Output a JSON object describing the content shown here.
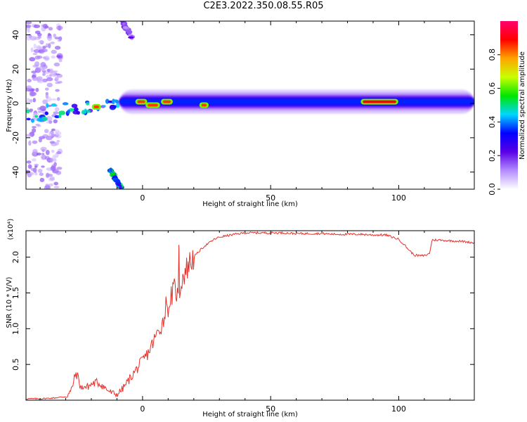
{
  "title": "C2E3.2022.350.08.55.R05",
  "chart_data": [
    {
      "type": "heatmap",
      "xlabel": "Height of straight line (km)",
      "ylabel": "Frequency (Hz)",
      "xlim": [
        -45.5,
        129.5
      ],
      "ylim": [
        -50,
        48
      ],
      "xticks": [
        0,
        50,
        100
      ],
      "yticks": [
        -40,
        -20,
        0,
        20,
        40
      ],
      "colorbar": {
        "label": "Normalized spectral amplitude",
        "range": [
          0.0,
          1.0
        ],
        "ticks": [
          0.0,
          0.2,
          0.4,
          0.6,
          0.8
        ],
        "colormap": [
          "#ffffff",
          "#b48cff",
          "#5a00e6",
          "#0000ff",
          "#00d7ff",
          "#00e600",
          "#c8ff00",
          "#ffa500",
          "#ff0000",
          "#ff006e"
        ]
      },
      "main_band": {
        "x_range": [
          -9,
          129.5
        ],
        "frequency": 1,
        "typical_amplitude": 0.35,
        "peak_amplitude": 0.9
      },
      "features": [
        {
          "x_range": [
            -45,
            -32
          ],
          "frequency_range": [
            -50,
            48
          ],
          "typical_amplitude": 0.1,
          "kind": "noise"
        },
        {
          "x_range": [
            -45,
            -9
          ],
          "frequency_range": [
            -12,
            3
          ],
          "typical_amplitude": 0.3,
          "kind": "rising-echo"
        },
        {
          "x_range": [
            -13,
            -8
          ],
          "frequency_range": [
            -50,
            -38
          ],
          "typical_amplitude": 0.4,
          "kind": "slanted-echo"
        },
        {
          "x_range": [
            -8,
            -4
          ],
          "frequency_range": [
            38,
            48
          ],
          "typical_amplitude": 0.15,
          "kind": "slanted-echo"
        }
      ],
      "hot_spots": [
        {
          "x_range": [
            -19,
            -17
          ],
          "frequency": -2,
          "amplitude": 0.85
        },
        {
          "x_range": [
            -2,
            1
          ],
          "frequency": 1,
          "amplitude": 0.85
        },
        {
          "x_range": [
            2,
            6
          ],
          "frequency": -1,
          "amplitude": 0.85
        },
        {
          "x_range": [
            8,
            11
          ],
          "frequency": 1,
          "amplitude": 0.85
        },
        {
          "x_range": [
            23,
            25
          ],
          "frequency": -1,
          "amplitude": 0.85
        },
        {
          "x_range": [
            86,
            99
          ],
          "frequency": 1,
          "amplitude": 0.9
        }
      ]
    },
    {
      "type": "line",
      "xlabel": "Height of straight line (km)",
      "ylabel": "SNR (10 * V/V)",
      "yscale_label": "(x10⁴)",
      "xlim": [
        -45.5,
        129.5
      ],
      "ylim": [
        0,
        2.37
      ],
      "xticks": [
        0,
        50,
        100
      ],
      "yticks": [
        0.5,
        1.0,
        1.5,
        2.0
      ],
      "ytick_labels": [
        "0.5",
        "1.0",
        "1.5",
        "2.0"
      ],
      "color": "#e8312a",
      "series": [
        {
          "x": [
            -45.5,
            -40,
            -35,
            -30,
            -28,
            -26,
            -25,
            -24,
            -23,
            -22,
            -20,
            -18,
            -16,
            -14,
            -12,
            -10,
            -8,
            -6,
            -4,
            -2,
            0,
            2,
            4,
            6,
            8,
            10,
            11,
            12,
            13,
            14,
            15,
            16,
            18,
            20,
            22,
            24,
            26,
            28,
            30,
            33,
            36,
            40,
            45,
            50,
            55,
            60,
            65,
            70,
            75,
            80,
            85,
            90,
            95,
            100,
            102,
            104,
            106,
            108,
            110,
            112,
            113,
            115,
            120,
            125,
            129.5
          ],
          "y": [
            0.02,
            0.02,
            0.03,
            0.05,
            0.12,
            0.38,
            0.3,
            0.15,
            0.2,
            0.18,
            0.22,
            0.25,
            0.22,
            0.15,
            0.1,
            0.08,
            0.15,
            0.25,
            0.35,
            0.45,
            0.55,
            0.65,
            0.8,
            0.95,
            1.1,
            1.3,
            1.45,
            1.5,
            1.55,
            1.4,
            1.65,
            1.75,
            1.9,
            2.0,
            2.08,
            2.15,
            2.2,
            2.25,
            2.28,
            2.3,
            2.32,
            2.34,
            2.34,
            2.34,
            2.34,
            2.33,
            2.33,
            2.33,
            2.32,
            2.32,
            2.32,
            2.31,
            2.31,
            2.25,
            2.18,
            2.1,
            2.03,
            2.02,
            2.02,
            2.05,
            2.24,
            2.24,
            2.23,
            2.22,
            2.2
          ]
        }
      ],
      "spikes": [
        {
          "x": 9.0,
          "y": 1.45
        },
        {
          "x": 14.2,
          "y": 2.17
        },
        {
          "x": 12.5,
          "y": 1.7
        },
        {
          "x": 10.8,
          "y": 1.35
        }
      ]
    }
  ]
}
